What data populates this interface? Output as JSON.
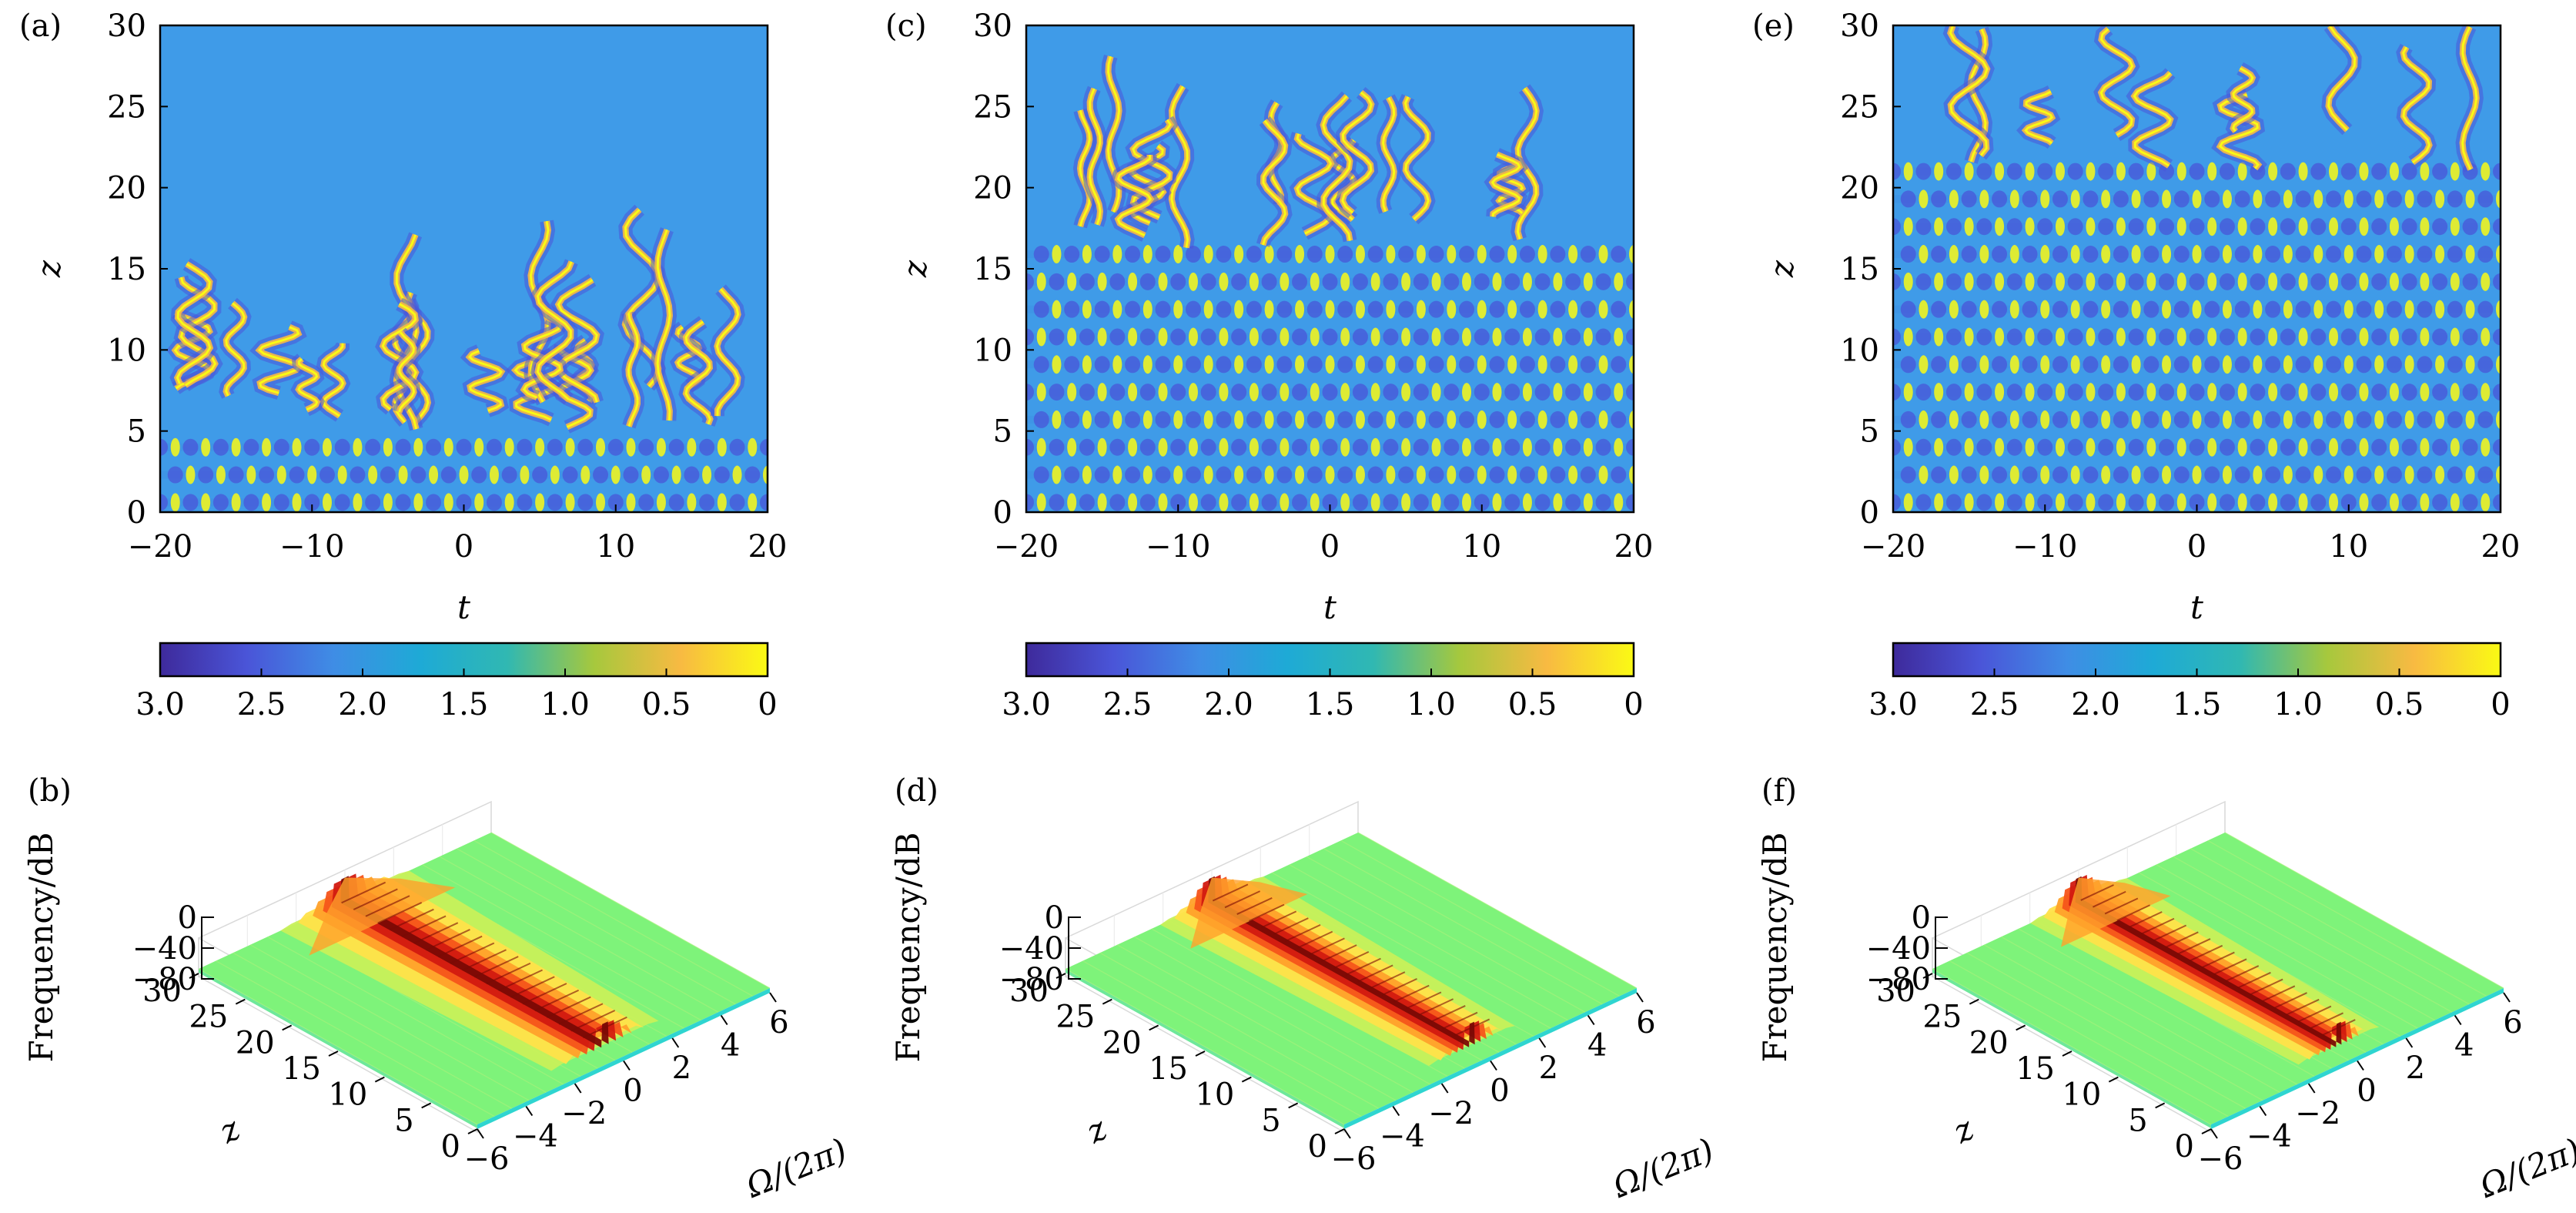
{
  "figure": {
    "heatmap_panels": [
      {
        "id": "a",
        "label": "(a)"
      },
      {
        "id": "c",
        "label": "(c)"
      },
      {
        "id": "e",
        "label": "(e)"
      }
    ],
    "spectrum_panels": [
      {
        "id": "b",
        "label": "(b)"
      },
      {
        "id": "d",
        "label": "(d)"
      },
      {
        "id": "f",
        "label": "(f)"
      }
    ],
    "colors": {
      "cmap": [
        "#fafa14",
        "#f8ba42",
        "#a6c83d",
        "#30b8b2",
        "#1eaad6",
        "#3f8de5",
        "#4a55d8",
        "#3e2a9b"
      ],
      "spectrum": [
        "#7ef37a",
        "#c8f05a",
        "#ffe14a",
        "#ffa12a",
        "#f5541a",
        "#d21a10",
        "#7a0a05"
      ],
      "spectrum_base": "#7ef37a",
      "spectrum_edge": "#2fd5d0"
    }
  },
  "chart_data": [
    {
      "type": "heatmap",
      "panel": "(a)",
      "xlabel": "t",
      "ylabel": "z",
      "xlim": [
        -20,
        20
      ],
      "ylim": [
        0,
        30
      ],
      "xticks": [
        "−20",
        "−10",
        "0",
        "10",
        "20"
      ],
      "yticks": [
        "0",
        "5",
        "10",
        "15",
        "20",
        "25",
        "30"
      ],
      "colorbar": {
        "ticks": [
          "3.0",
          "2.5",
          "2.0",
          "1.5",
          "1.0",
          "0.5",
          "0"
        ],
        "range": [
          3.0,
          0
        ]
      },
      "regular_until_z": 5,
      "pattern": "irregular filaments above z≈5"
    },
    {
      "type": "heatmap",
      "panel": "(c)",
      "xlabel": "t",
      "ylabel": "z",
      "xlim": [
        -20,
        20
      ],
      "ylim": [
        0,
        30
      ],
      "xticks": [
        "−20",
        "−10",
        "0",
        "10",
        "20"
      ],
      "yticks": [
        "0",
        "5",
        "10",
        "15",
        "20",
        "25",
        "30"
      ],
      "colorbar": {
        "ticks": [
          "3.0",
          "2.5",
          "2.0",
          "1.5",
          "1.0",
          "0.5",
          "0"
        ],
        "range": [
          3.0,
          0
        ]
      },
      "regular_until_z": 16,
      "pattern": "regular lattice up to z≈16, irregular above"
    },
    {
      "type": "heatmap",
      "panel": "(e)",
      "xlabel": "t",
      "ylabel": "z",
      "xlim": [
        -20,
        20
      ],
      "ylim": [
        0,
        30
      ],
      "xticks": [
        "−20",
        "−10",
        "0",
        "10",
        "20"
      ],
      "yticks": [
        "0",
        "5",
        "10",
        "15",
        "20",
        "25",
        "30"
      ],
      "colorbar": {
        "ticks": [
          "3.0",
          "2.5",
          "2.0",
          "1.5",
          "1.0",
          "0.5",
          "0"
        ],
        "range": [
          3.0,
          0
        ]
      },
      "regular_until_z": 21,
      "pattern": "regular lattice up to z≈21, weak irregularity above"
    },
    {
      "type": "surface3d",
      "panel": "(b)",
      "xlabel": "Ω/(2π)",
      "ylabel": "z",
      "zlabel": "Frequency/dB",
      "xlim": [
        -6,
        6
      ],
      "ylim": [
        0,
        30
      ],
      "zlim": [
        -80,
        0
      ],
      "xticks": [
        "−6",
        "−4",
        "−2",
        "0",
        "2",
        "4",
        "6"
      ],
      "yticks": [
        "0",
        "5",
        "10",
        "15",
        "20",
        "25",
        "30"
      ],
      "zticks": [
        "0",
        "−40",
        "−80"
      ],
      "ridge_width": 1.0
    },
    {
      "type": "surface3d",
      "panel": "(d)",
      "xlabel": "Ω/(2π)",
      "ylabel": "z",
      "zlabel": "Frequency/dB",
      "xlim": [
        -6,
        6
      ],
      "ylim": [
        0,
        30
      ],
      "zlim": [
        -80,
        0
      ],
      "xticks": [
        "−6",
        "−4",
        "−2",
        "0",
        "2",
        "4",
        "6"
      ],
      "yticks": [
        "0",
        "5",
        "10",
        "15",
        "20",
        "25",
        "30"
      ],
      "zticks": [
        "0",
        "−40",
        "−80"
      ],
      "ridge_width": 0.8
    },
    {
      "type": "surface3d",
      "panel": "(f)",
      "xlabel": "Ω/(2π)",
      "ylabel": "z",
      "zlabel": "Frequency/dB",
      "xlim": [
        -6,
        6
      ],
      "ylim": [
        0,
        30
      ],
      "zlim": [
        -80,
        0
      ],
      "xticks": [
        "−6",
        "−4",
        "−2",
        "0",
        "2",
        "4",
        "6"
      ],
      "yticks": [
        "0",
        "5",
        "10",
        "15",
        "20",
        "25",
        "30"
      ],
      "zticks": [
        "0",
        "−40",
        "−80"
      ],
      "ridge_width": 0.75
    }
  ]
}
